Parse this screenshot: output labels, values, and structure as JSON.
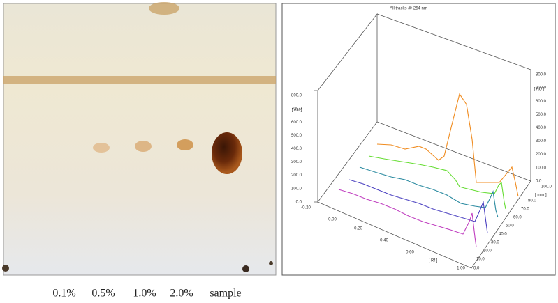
{
  "lanes": [
    "0.1%",
    "0.5%",
    "1.0%",
    "2.0%",
    "sample"
  ],
  "densitogram": {
    "title": "All tracks @ 254 nm",
    "au_label": "[ AU ]",
    "left_au_ticks": [
      "800.0",
      "700.0",
      "600.0",
      "500.0",
      "400.0",
      "300.0",
      "200.0",
      "100.0",
      "0.0"
    ],
    "right_au_ticks": [
      "800.0",
      "700.0",
      "600.0",
      "500.0",
      "400.0",
      "300.0",
      "200.0",
      "100.0",
      "0.0"
    ],
    "rf_label": "[ Rf ]",
    "rf_ticks": [
      "-0.20",
      "0.00",
      "0.20",
      "0.40",
      "0.60",
      "1.00"
    ],
    "mm_label": "[ mm ]",
    "mm_ticks": [
      "0.0",
      "10.0",
      "20.0",
      "30.0",
      "40.0",
      "50.0",
      "60.0",
      "70.0",
      "80.0",
      "100.0"
    ]
  }
}
